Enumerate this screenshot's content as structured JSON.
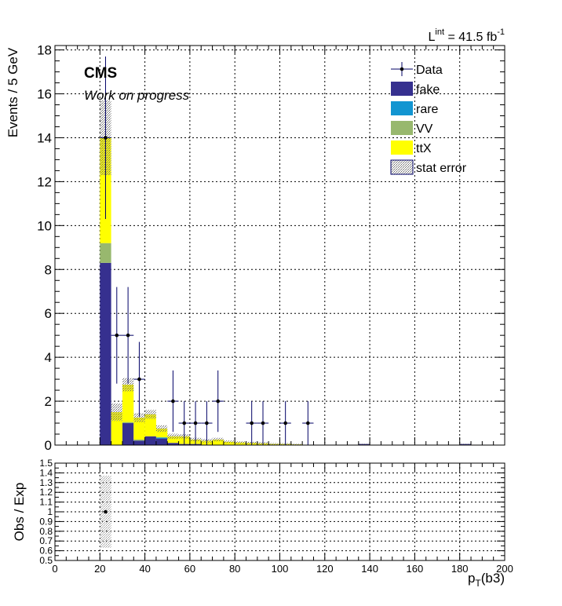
{
  "chart_data": {
    "type": "bar",
    "lumi": {
      "prefix": "L",
      "sup": "int",
      "value": " = 41.5 fb",
      "exp": "-1"
    },
    "cms_label": "CMS",
    "cms_sublabel": "Work on progress",
    "ylabel": "Events / 5 GeV",
    "ratio_ylabel": "Obs / Exp",
    "xlabel": {
      "main": "p",
      "sub": "T",
      "rest": "(b3)"
    },
    "xlim": [
      0,
      200
    ],
    "ylim": [
      0,
      18.2
    ],
    "ratio_ylim": [
      0.5,
      1.5
    ],
    "grid": true,
    "legend_position": "top-right",
    "x_ticks": [
      "0",
      "20",
      "40",
      "60",
      "80",
      "100",
      "120",
      "140",
      "160",
      "180",
      "200"
    ],
    "y_ticks": [
      "0",
      "2",
      "4",
      "6",
      "8",
      "10",
      "12",
      "14",
      "16",
      "18"
    ],
    "ratio_ticks": [
      "0.5",
      "0.6",
      "0.7",
      "0.8",
      "0.9",
      "1",
      "1.1",
      "1.2",
      "1.3",
      "1.4",
      "1.5"
    ],
    "bin_edges": [
      20,
      25,
      30,
      35,
      40,
      45,
      50,
      55,
      60,
      65,
      70,
      75,
      80,
      85,
      90,
      95,
      100,
      105,
      110,
      115,
      135,
      140,
      180,
      185
    ],
    "stack": [
      {
        "name": "fake",
        "color": "#36308f",
        "values": [
          8.3,
          0,
          1.0,
          0.2,
          0.4,
          0.3,
          0.1,
          0.05,
          0.05,
          0,
          0,
          0,
          0,
          0,
          0,
          0,
          0,
          0,
          0,
          0,
          0.05,
          0,
          0.05
        ]
      },
      {
        "name": "rare",
        "color": "#1295d1",
        "values": [
          0,
          0,
          0,
          0,
          0,
          0.05,
          0,
          0,
          0,
          0,
          0,
          0,
          0,
          0,
          0,
          0,
          0,
          0,
          0,
          0,
          0,
          0,
          0
        ]
      },
      {
        "name": "VV",
        "color": "#98b86e",
        "values": [
          0.9,
          0,
          0.05,
          0.05,
          0,
          0,
          0,
          0,
          0,
          0,
          0,
          0,
          0,
          0,
          0,
          0,
          0,
          0,
          0,
          0,
          0,
          0,
          0
        ]
      },
      {
        "name": "ttX",
        "color": "#ffff00",
        "values": [
          4.8,
          1.5,
          1.7,
          1.0,
          1.0,
          0.4,
          0.3,
          0.35,
          0.2,
          0.2,
          0.25,
          0.15,
          0.12,
          0.1,
          0.08,
          0.05,
          0.05,
          0.03,
          0,
          0,
          0,
          0,
          0
        ]
      }
    ],
    "stat_error": [
      1.7,
      0.4,
      0.3,
      0.2,
      0.2,
      0.15,
      0.12,
      0.1,
      0.08,
      0.08,
      0.08,
      0.06,
      0.06,
      0.05,
      0.05,
      0.04,
      0.04,
      0.03,
      0,
      0,
      0.02,
      0,
      0.02
    ],
    "data_points": [
      {
        "x": 22.5,
        "y": 14,
        "err_lo": 3.7,
        "err_hi": 3.7
      },
      {
        "x": 27.5,
        "y": 5,
        "err_lo": 2.2,
        "err_hi": 2.2
      },
      {
        "x": 32.5,
        "y": 5,
        "err_lo": 2.2,
        "err_hi": 2.2
      },
      {
        "x": 37.5,
        "y": 3,
        "err_lo": 1.7,
        "err_hi": 1.7
      },
      {
        "x": 52.5,
        "y": 2,
        "err_lo": 1.4,
        "err_hi": 1.4
      },
      {
        "x": 57.5,
        "y": 1,
        "err_lo": 1,
        "err_hi": 1
      },
      {
        "x": 62.5,
        "y": 1,
        "err_lo": 1,
        "err_hi": 1
      },
      {
        "x": 67.5,
        "y": 1,
        "err_lo": 1,
        "err_hi": 1
      },
      {
        "x": 72.5,
        "y": 2,
        "err_lo": 1.4,
        "err_hi": 1.4
      },
      {
        "x": 87.5,
        "y": 1,
        "err_lo": 1,
        "err_hi": 1
      },
      {
        "x": 92.5,
        "y": 1,
        "err_lo": 1,
        "err_hi": 1
      },
      {
        "x": 102.5,
        "y": 1,
        "err_lo": 1,
        "err_hi": 1
      },
      {
        "x": 112.5,
        "y": 1,
        "err_lo": 1,
        "err_hi": 1
      }
    ],
    "legend": [
      {
        "label": "Data",
        "kind": "data"
      },
      {
        "label": "fake",
        "kind": "fill",
        "color": "#36308f"
      },
      {
        "label": "rare",
        "kind": "fill",
        "color": "#1295d1"
      },
      {
        "label": "VV",
        "kind": "fill",
        "color": "#98b86e"
      },
      {
        "label": "ttX",
        "kind": "fill",
        "color": "#ffff00"
      },
      {
        "label": "stat error",
        "kind": "hatch"
      }
    ],
    "ratio_points": [
      {
        "x": 22.5,
        "y": 1.0
      }
    ],
    "ratio_error_band": [
      {
        "x0": 20,
        "x1": 25,
        "y0": 0.63,
        "y1": 1.37
      }
    ]
  }
}
